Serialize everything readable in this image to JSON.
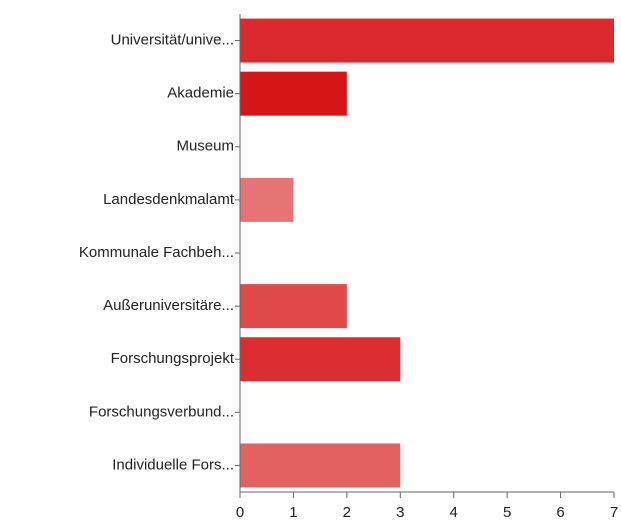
{
  "chart_data": {
    "type": "hbar",
    "categories": [
      "Universität/unive...",
      "Akademie",
      "Museum",
      "Landesdenkmalamt",
      "Kommunale Fachbeh...",
      "Außeruniversitäre...",
      "Forschungsprojekt",
      "Forschungsverbund...",
      "Individuelle Fors..."
    ],
    "values": [
      7,
      2,
      0,
      1,
      0,
      2,
      3,
      0,
      3
    ],
    "colors": [
      "#db2a2e",
      "#d51517",
      "#dc3c3c",
      "#e77474",
      "#dc3c3c",
      "#e04a4a",
      "#dc2d30",
      "#dc3c3c",
      "#e26161"
    ],
    "xlim": [
      0,
      7
    ],
    "xticks": [
      0,
      1,
      2,
      3,
      4,
      5,
      6,
      7
    ]
  }
}
